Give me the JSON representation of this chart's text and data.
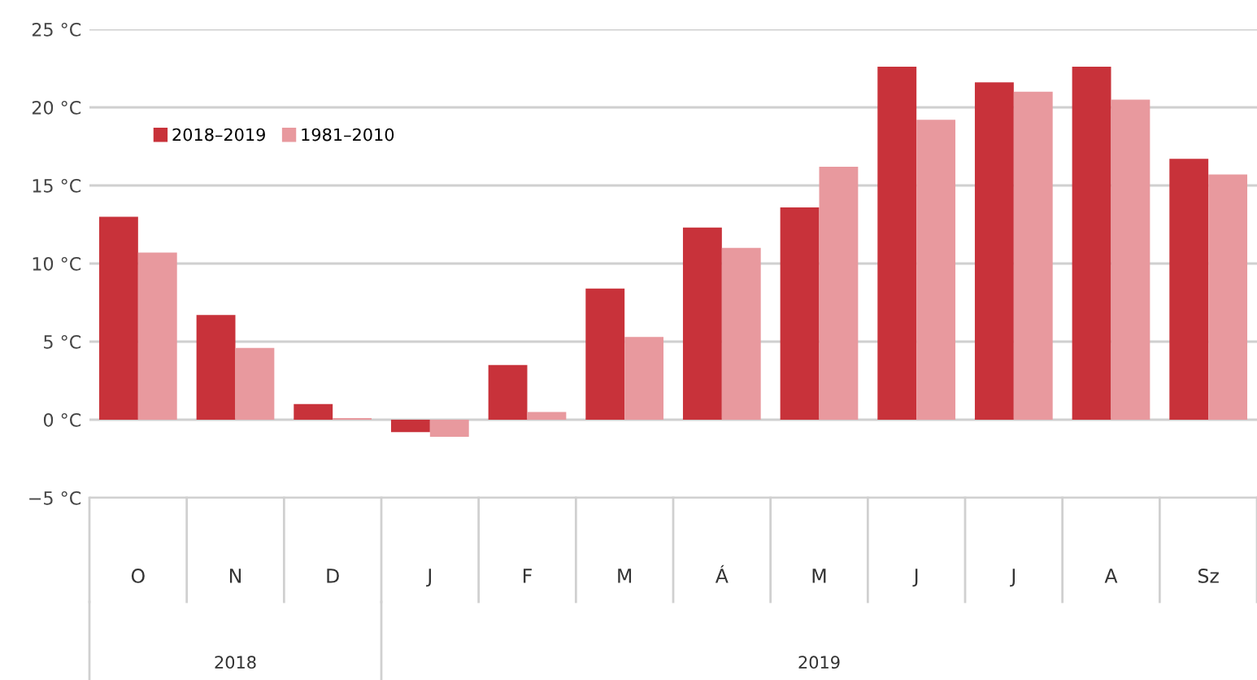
{
  "chart_data": {
    "type": "bar",
    "categories": [
      "O",
      "N",
      "D",
      "J",
      "F",
      "M",
      "Á",
      "M",
      "J",
      "J",
      "A",
      "Sz"
    ],
    "series": [
      {
        "name": "2018–2019",
        "color": "#c8323a",
        "values": [
          13.0,
          6.7,
          1.0,
          -0.8,
          3.5,
          8.4,
          12.3,
          13.6,
          22.6,
          21.6,
          22.6,
          16.7
        ]
      },
      {
        "name": "1981–2010",
        "color": "#e8999e",
        "values": [
          10.7,
          4.6,
          0.1,
          -1.1,
          0.5,
          5.3,
          11.0,
          16.2,
          19.2,
          21.0,
          20.5,
          15.7
        ]
      }
    ],
    "ylim": [
      -5,
      25
    ],
    "yticks": [
      {
        "value": -5,
        "label": "−5 °C"
      },
      {
        "value": 0,
        "label": "0 °C"
      },
      {
        "value": 5,
        "label": "5 °C"
      },
      {
        "value": 10,
        "label": "10 °C"
      },
      {
        "value": 15,
        "label": "15 °C"
      },
      {
        "value": 20,
        "label": "20 °C"
      },
      {
        "value": 25,
        "label": "25 °C"
      }
    ],
    "grid": "y",
    "legend": "top left",
    "annotations": [
      "2018",
      "2019"
    ]
  }
}
